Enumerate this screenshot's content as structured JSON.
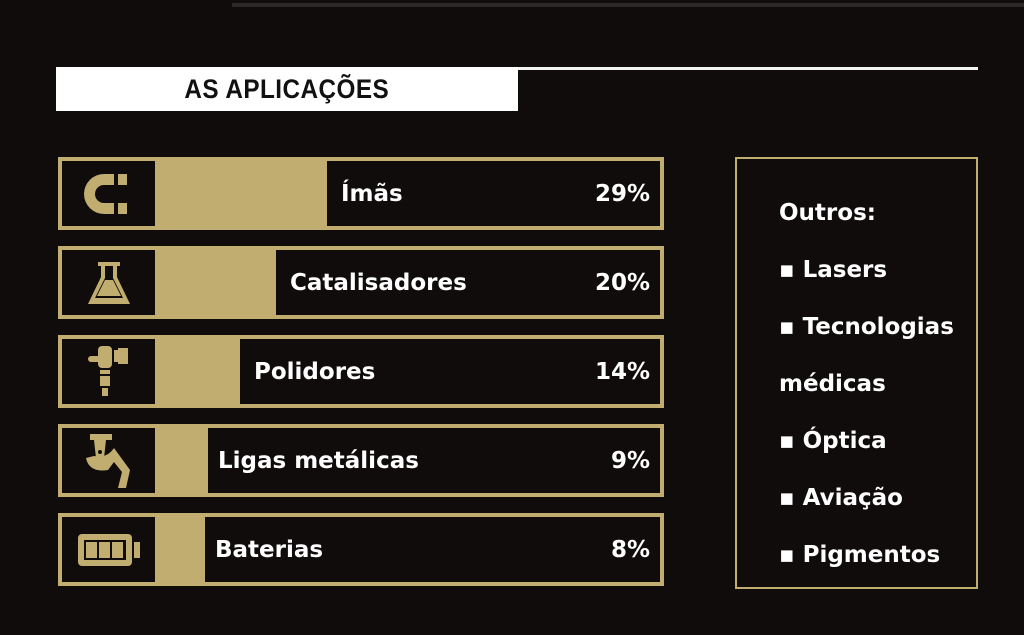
{
  "header": {
    "title": "AS APLICAÇÕES"
  },
  "colors": {
    "background": "#110c0c",
    "accent": "#c2ad70",
    "text": "#ffffff"
  },
  "chart_data": {
    "type": "bar",
    "title": "AS APLICAÇÕES",
    "categories": [
      "Ímãs",
      "Catalisadores",
      "Polidores",
      "Ligas metálicas",
      "Baterias"
    ],
    "values": [
      29,
      20,
      14,
      9,
      8
    ],
    "labels": [
      "29%",
      "20%",
      "14%",
      "9%",
      "8%"
    ],
    "icons": [
      "magnet-icon",
      "flask-icon",
      "polisher-icon",
      "pouring-ladle-icon",
      "battery-icon"
    ],
    "orientation": "horizontal",
    "unit": "%"
  },
  "others": {
    "title": "Outros:",
    "items": [
      "▪ Lasers",
      "▪ Tecnologias",
      "médicas",
      "▪ Óptica",
      "▪ Aviação",
      "▪ Pigmentos"
    ]
  }
}
